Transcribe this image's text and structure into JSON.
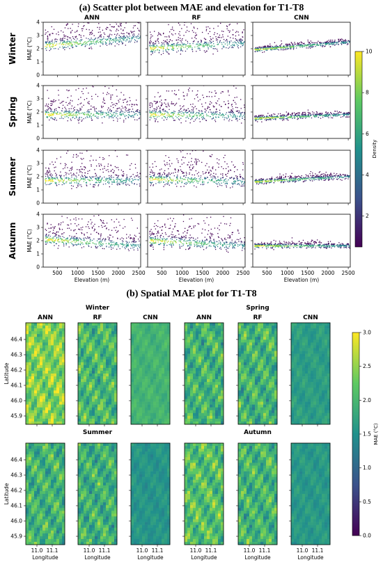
{
  "chart_data": [
    {
      "type": "scatter",
      "title": "(a) Scatter plot between MAE and elevation for T1-T8",
      "columns": [
        "ANN",
        "RF",
        "CNN"
      ],
      "rows": [
        "Winter",
        "Spring",
        "Summer",
        "Autumn"
      ],
      "xlabel": "Elevation (m)",
      "ylabel": "MAE (°C)",
      "xlim": [
        150,
        2550
      ],
      "ylim": [
        0,
        4
      ],
      "xticks": [
        "500",
        "1000",
        "1500",
        "2000",
        "2500"
      ],
      "yticks": [
        "0",
        "1",
        "2",
        "3",
        "4"
      ],
      "colorbar": {
        "label": "Density",
        "range": [
          0.5,
          10
        ],
        "ticks": [
          "2",
          "4",
          "6",
          "8",
          "10"
        ],
        "colormap": "viridis"
      },
      "trends": {
        "Winter": {
          "ANN": [
            2.2,
            2.8
          ],
          "RF": [
            2.0,
            2.4
          ],
          "CNN": [
            1.9,
            2.5
          ]
        },
        "Spring": {
          "ANN": [
            1.8,
            1.8
          ],
          "RF": [
            1.8,
            1.7
          ],
          "CNN": [
            1.5,
            1.8
          ]
        },
        "Summer": {
          "ANN": [
            1.7,
            1.7
          ],
          "RF": [
            1.8,
            1.6
          ],
          "CNN": [
            1.6,
            2.0
          ]
        },
        "Autumn": {
          "ANN": [
            2.1,
            1.6
          ],
          "RF": [
            2.0,
            1.6
          ],
          "CNN": [
            1.6,
            1.6
          ]
        }
      }
    },
    {
      "type": "heatmap",
      "title": "(b) Spatial MAE plot for T1-T8",
      "seasons": [
        "Winter",
        "Spring",
        "Summer",
        "Autumn"
      ],
      "models": [
        "ANN",
        "RF",
        "CNN"
      ],
      "xlabel": "Longitude",
      "ylabel": "Latitude",
      "xticks": [
        "11.0",
        "11.1"
      ],
      "yticks": [
        "46.4",
        "46.3",
        "46.2",
        "46.1",
        "46.0",
        "45.9"
      ],
      "colorbar": {
        "label": "MAE (°C)",
        "range": [
          0,
          3
        ],
        "ticks": [
          "0.0",
          "0.5",
          "1.0",
          "1.5",
          "2.0",
          "2.5",
          "3.0"
        ],
        "colormap": "viridis"
      },
      "mean_mae": {
        "Winter": {
          "ANN": 2.4,
          "RF": 2.0,
          "CNN": 1.95
        },
        "Spring": {
          "ANN": 1.95,
          "RF": 1.95,
          "CNN": 1.65
        },
        "Summer": {
          "ANN": 1.95,
          "RF": 1.9,
          "CNN": 1.55
        },
        "Autumn": {
          "ANN": 2.1,
          "RF": 1.95,
          "CNN": 1.6
        }
      }
    }
  ]
}
